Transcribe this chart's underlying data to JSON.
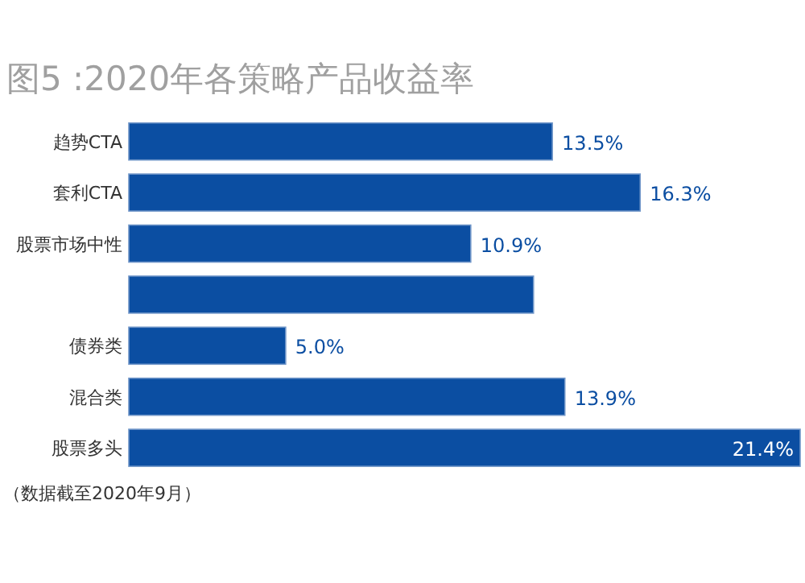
{
  "chart_data": {
    "type": "bar",
    "orientation": "horizontal",
    "title": "图5 :2020年各策略产品收益率",
    "categories": [
      "趋势CTA",
      "套利CTA",
      "股票市场中性",
      null,
      "债券类",
      "混合类",
      "股票多头"
    ],
    "values": [
      13.5,
      16.3,
      10.9,
      12.9,
      5.0,
      13.9,
      21.4
    ],
    "value_labels": [
      "13.5%",
      "16.3%",
      "10.9%",
      null,
      "5.0%",
      "13.9%",
      "21.4%"
    ],
    "color": "#0b4ea2",
    "annotations": [
      "（数据截至2020年9月）"
    ]
  }
}
